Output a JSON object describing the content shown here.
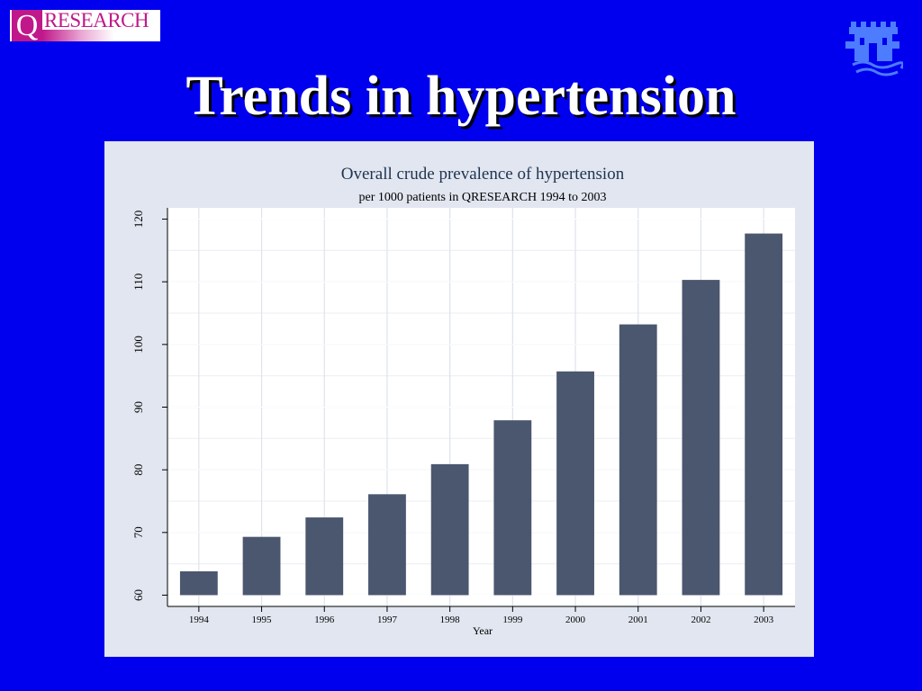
{
  "logo": {
    "q": "Q",
    "word": "RESEARCH"
  },
  "slide": {
    "title": "Trends in hypertension"
  },
  "colors": {
    "background": "#0000ee",
    "panel": "#e1e6f0",
    "bar": "#4b566f",
    "plot": "#ffffff"
  },
  "icons": {
    "crest": "castle-crest-icon"
  },
  "chart_data": {
    "type": "bar",
    "title": "Overall crude prevalence of hypertension",
    "subtitle": "per 1000 patients in QRESEARCH 1994 to 2003",
    "xlabel": "Year",
    "ylabel": "",
    "categories": [
      "1994",
      "1995",
      "1996",
      "1997",
      "1998",
      "1999",
      "2000",
      "2001",
      "2002",
      "2003"
    ],
    "values": [
      63.8,
      69.3,
      72.4,
      76.1,
      80.9,
      87.9,
      95.7,
      103.2,
      110.3,
      117.7
    ],
    "ylim": [
      58.2,
      121.8
    ],
    "yticks": [
      60,
      70,
      80,
      90,
      100,
      110,
      120
    ],
    "grid": true,
    "legend": "none"
  }
}
